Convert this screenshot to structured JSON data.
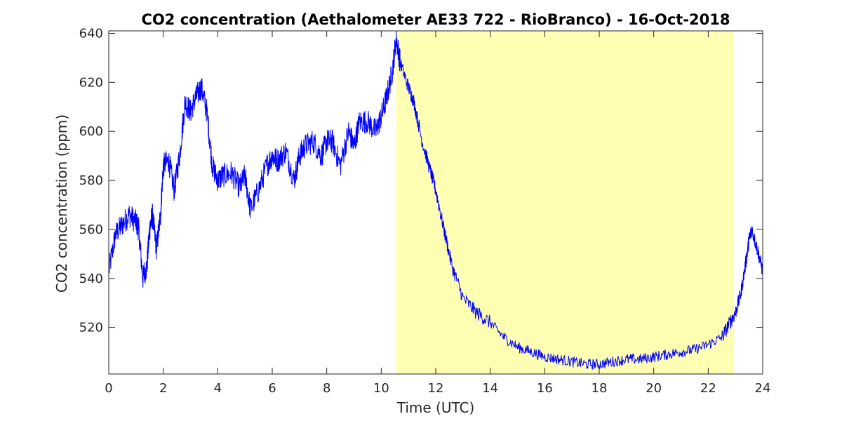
{
  "chart_data": {
    "type": "line",
    "title": "CO2 concentration (Aethalometer AE33 722 - RioBranco) - 16-Oct-2018",
    "xlabel": "Time (UTC)",
    "ylabel": "CO2 concentration (ppm)",
    "xlim": [
      0,
      24
    ],
    "ylim": [
      501,
      641
    ],
    "xticks": [
      0,
      2,
      4,
      6,
      8,
      10,
      12,
      14,
      16,
      18,
      20,
      22,
      24
    ],
    "yticks": [
      520,
      540,
      560,
      580,
      600,
      620,
      640
    ],
    "grid": false,
    "legend": "none",
    "shaded_region": {
      "x_start": 10.55,
      "x_end": 22.95,
      "color": "#ffffb4"
    },
    "line_color": "#0000ff",
    "series": [
      {
        "x": [
          0.0,
          0.25,
          0.5,
          0.75,
          1.0,
          1.1,
          1.25,
          1.4,
          1.5,
          1.6,
          1.75,
          1.9,
          2.0,
          2.2,
          2.4,
          2.6,
          2.8,
          3.0,
          3.2,
          3.4,
          3.6,
          3.8,
          4.0,
          4.2,
          4.5,
          4.8,
          5.0,
          5.2,
          5.5,
          5.8,
          6.0,
          6.2,
          6.5,
          6.8,
          7.0,
          7.2,
          7.5,
          7.8,
          8.0,
          8.2,
          8.5,
          8.8,
          9.0,
          9.2,
          9.5,
          9.8,
          10.0,
          10.2,
          10.4,
          10.55,
          10.7,
          11.0,
          11.2,
          11.5,
          11.8,
          12.0,
          12.3,
          12.6,
          13.0,
          13.5,
          14.0,
          14.5,
          15.0,
          15.5,
          16.0,
          16.5,
          17.0,
          17.5,
          18.0,
          18.5,
          19.0,
          19.5,
          20.0,
          20.5,
          21.0,
          21.5,
          22.0,
          22.5,
          22.8,
          23.0,
          23.2,
          23.4,
          23.5,
          23.6,
          23.8,
          24.0
        ],
        "values": [
          543,
          558,
          562,
          566,
          563,
          560,
          540,
          545,
          560,
          566,
          552,
          566,
          586,
          588,
          576,
          590,
          612,
          608,
          614,
          618,
          608,
          586,
          580,
          582,
          583,
          577,
          582,
          568,
          576,
          586,
          590,
          588,
          592,
          580,
          590,
          594,
          596,
          590,
          596,
          596,
          586,
          600,
          594,
          604,
          604,
          600,
          606,
          614,
          624,
          638,
          628,
          618,
          612,
          596,
          584,
          576,
          560,
          545,
          532,
          526,
          522,
          516,
          512,
          510,
          508,
          507,
          506,
          505,
          505,
          506,
          507,
          507,
          508,
          509,
          510,
          511,
          513,
          516,
          522,
          526,
          534,
          548,
          556,
          560,
          552,
          543
        ]
      }
    ]
  }
}
